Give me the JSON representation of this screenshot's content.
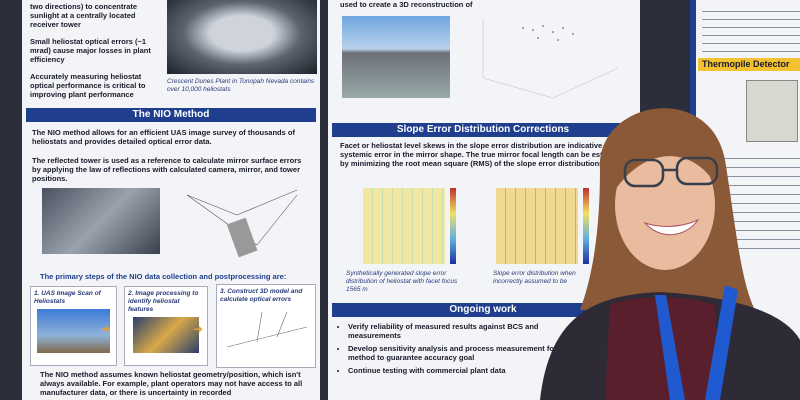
{
  "left_panel": {
    "intro_bullets": [
      "two directions) to concentrate sunlight at a centrally located receiver tower",
      "Small heliostat optical errors (~1 mrad) cause major losses in plant efficiency",
      "Accurately measuring heliostat optical performance is critical to improving plant performance"
    ],
    "photo_caption": "Crescent Dunes Plant in Tonopah Nevada contains over 10,000 heliostats",
    "section_title": "The NIO Method",
    "paragraphs": [
      "The NIO method allows for an efficient UAS image survey of thousands of heliostats and provides detailed optical error data.",
      "The reflected tower is used as a reference to calculate mirror surface errors by applying the law of reflections with calculated camera, mirror, and tower positions."
    ],
    "steps_heading": "The primary steps of the NIO data collection and postprocessing are:",
    "steps": [
      "1. UAS Image Scan of Heliostats",
      "2. Image processing to identify heliostat features",
      "3. Construct 3D model and calculate optical errors"
    ],
    "closing": "The NIO method assumes known heliostat geometry/position, which isn't always available. For example, plant operators may not have access to all manufacturer data, or there is uncertainty in recorded"
  },
  "middle_panel": {
    "top_text": "used to create a 3D reconstruction of",
    "section_title": "Slope Error Distribution Corrections",
    "paragraph": "Facet or heliostat level skews in the slope error distribution are indicative of systemic error in the mirror shape. The true mirror focal length can be estimating by minimizing the root mean square (RMS) of the slope error distributions.",
    "captions": [
      "Synthetically generated slope error distribution of heliostat with facet focus 1565 m",
      "Slope error distribution when incorrectly assumed to be"
    ],
    "ongoing_title": "Ongoing work",
    "ongoing_bullets": [
      "Verify reliability of measured results against BCS and measurements",
      "Develop sensitivity analysis and process measurement for manual method to guarantee accuracy goal",
      "Continue testing with commercial plant data"
    ]
  },
  "right_panel": {
    "section_title": "Thermopile Detector"
  }
}
